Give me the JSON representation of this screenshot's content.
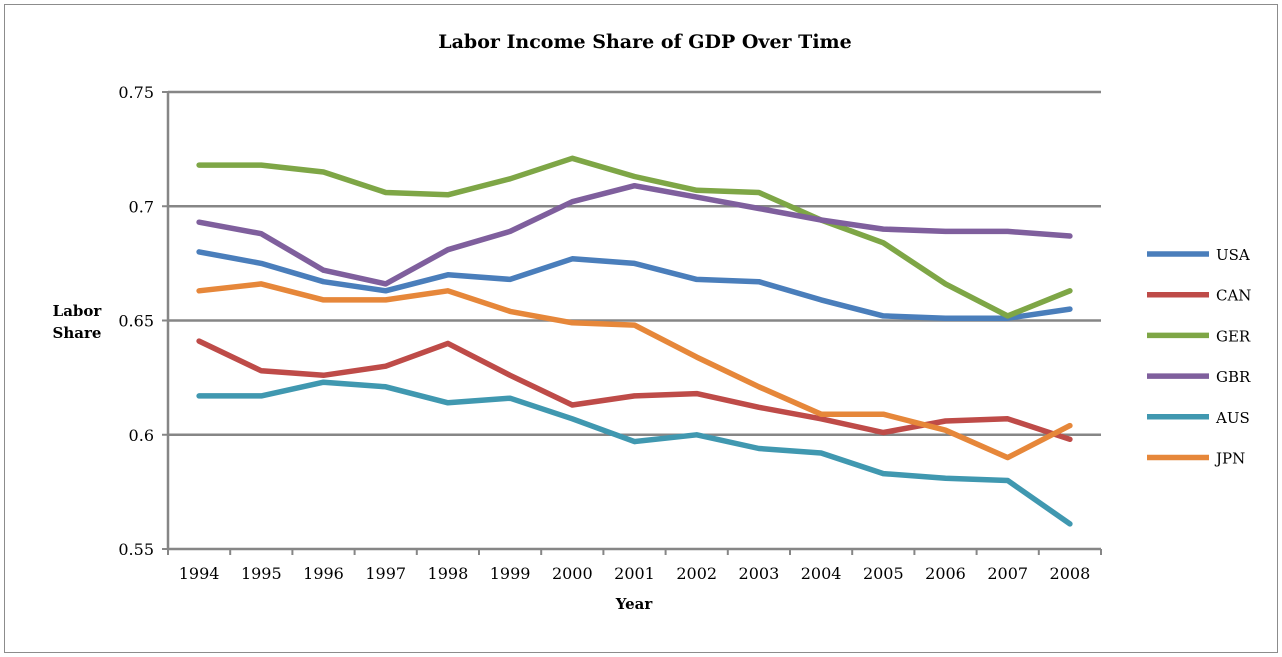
{
  "chart_data": {
    "type": "line",
    "title": "Labor Income Share of GDP Over Time",
    "xlabel": "Year",
    "ylabel_line1": "Labor",
    "ylabel_line2": "Share",
    "ylim": [
      0.55,
      0.75
    ],
    "y_ticks": [
      0.55,
      0.6,
      0.65,
      0.7,
      0.75
    ],
    "y_tick_labels": [
      "0.55",
      "0.6",
      "0.65",
      "0.7",
      "0.75"
    ],
    "grid": true,
    "legend_position": "right",
    "categories": [
      "1994",
      "1995",
      "1996",
      "1997",
      "1998",
      "1999",
      "2000",
      "2001",
      "2002",
      "2003",
      "2004",
      "2005",
      "2006",
      "2007",
      "2008"
    ],
    "series": [
      {
        "name": "USA",
        "color": "#4a7ebb",
        "values": [
          0.68,
          0.675,
          0.667,
          0.663,
          0.67,
          0.668,
          0.677,
          0.675,
          0.668,
          0.667,
          0.659,
          0.652,
          0.651,
          0.651,
          0.655
        ]
      },
      {
        "name": "CAN",
        "color": "#be4b48",
        "values": [
          0.641,
          0.628,
          0.626,
          0.63,
          0.64,
          0.626,
          0.613,
          0.617,
          0.618,
          0.612,
          0.607,
          0.601,
          0.606,
          0.607,
          0.598
        ]
      },
      {
        "name": "GER",
        "color": "#7ea646",
        "values": [
          0.718,
          0.718,
          0.715,
          0.706,
          0.705,
          0.712,
          0.721,
          0.713,
          0.707,
          0.706,
          0.694,
          0.684,
          0.666,
          0.652,
          0.663
        ]
      },
      {
        "name": "GBR",
        "color": "#7f5f9d",
        "values": [
          0.693,
          0.688,
          0.672,
          0.666,
          0.681,
          0.689,
          0.702,
          0.709,
          0.704,
          0.699,
          0.694,
          0.69,
          0.689,
          0.689,
          0.687
        ]
      },
      {
        "name": "AUS",
        "color": "#4098b0",
        "values": [
          0.617,
          0.617,
          0.623,
          0.621,
          0.614,
          0.616,
          0.607,
          0.597,
          0.6,
          0.594,
          0.592,
          0.583,
          0.581,
          0.58,
          0.561
        ]
      },
      {
        "name": "JPN",
        "color": "#e6873a",
        "values": [
          0.663,
          0.666,
          0.659,
          0.659,
          0.663,
          0.654,
          0.649,
          0.648,
          0.634,
          0.621,
          0.609,
          0.609,
          0.602,
          0.59,
          0.604
        ]
      }
    ]
  }
}
